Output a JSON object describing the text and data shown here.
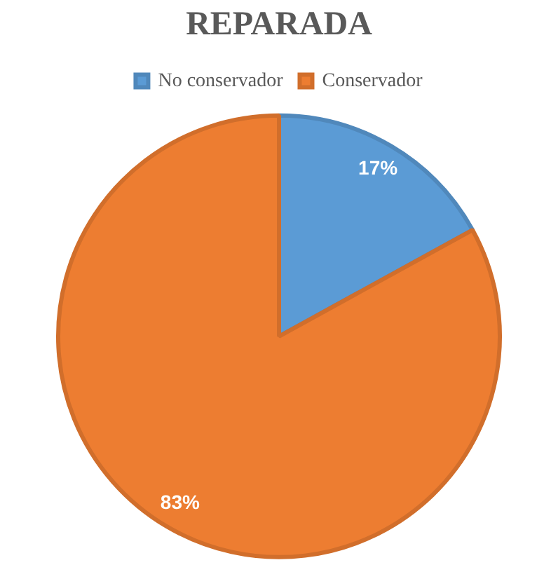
{
  "chart_data": {
    "type": "pie",
    "title": "REPARADA",
    "categories": [
      "No conservador",
      "Conservador"
    ],
    "values": [
      17,
      83
    ],
    "colors": [
      "#5b9bd5",
      "#ed7d31"
    ],
    "value_labels": [
      "17%",
      "83%"
    ],
    "legend": "top"
  }
}
